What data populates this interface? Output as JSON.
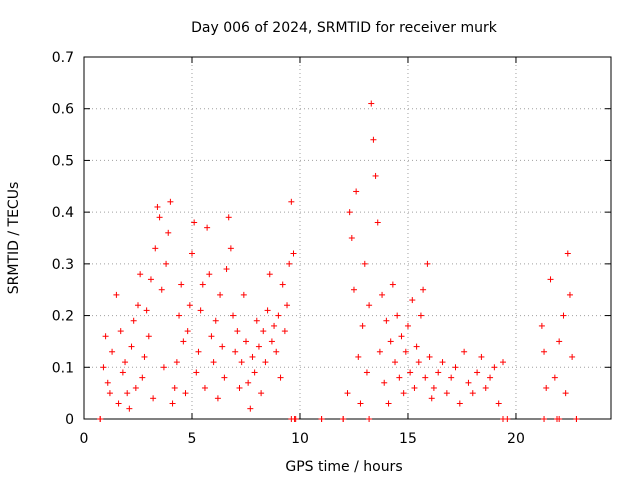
{
  "chart_data": {
    "type": "scatter",
    "title": "Day 006 of 2024, SRMTID for receiver murk",
    "xlabel": "GPS time / hours",
    "ylabel": "SRMTID / TECUs",
    "xlim": [
      0,
      24.4
    ],
    "ylim": [
      0,
      0.7
    ],
    "x_ticks": [
      0,
      5,
      10,
      15,
      20
    ],
    "x_tick_labels": [
      "0",
      "5",
      "10",
      "15",
      "20"
    ],
    "y_ticks": [
      0,
      0.1,
      0.2,
      0.3,
      0.4,
      0.5,
      0.6,
      0.7
    ],
    "y_tick_labels": [
      "0",
      "0.1",
      "0.2",
      "0.3",
      "0.4",
      "0.5",
      "0.6",
      "0.7"
    ],
    "grid": true,
    "marker": "+",
    "series": [
      {
        "name": "SRMTID",
        "color": "#ff0000",
        "x": [
          0.75,
          0.9,
          1.0,
          1.1,
          1.2,
          1.3,
          1.5,
          1.6,
          1.7,
          1.8,
          1.9,
          2.0,
          2.1,
          2.2,
          2.3,
          2.4,
          2.5,
          2.6,
          2.7,
          2.8,
          2.9,
          3.0,
          3.1,
          3.2,
          3.3,
          3.4,
          3.5,
          3.6,
          3.7,
          3.8,
          3.9,
          4.0,
          4.1,
          4.2,
          4.3,
          4.4,
          4.5,
          4.6,
          4.7,
          4.8,
          4.9,
          5.0,
          5.1,
          5.2,
          5.3,
          5.4,
          5.5,
          5.6,
          5.7,
          5.8,
          5.9,
          6.0,
          6.1,
          6.2,
          6.3,
          6.4,
          6.5,
          6.6,
          6.7,
          6.8,
          6.9,
          7.0,
          7.1,
          7.2,
          7.3,
          7.4,
          7.5,
          7.6,
          7.7,
          7.8,
          7.9,
          8.0,
          8.1,
          8.2,
          8.3,
          8.4,
          8.5,
          8.6,
          8.7,
          8.8,
          8.9,
          9.0,
          9.1,
          9.2,
          9.3,
          9.4,
          9.5,
          9.6,
          9.7,
          9.75,
          11.0,
          12.0,
          12.2,
          12.3,
          12.4,
          12.5,
          12.6,
          12.7,
          12.8,
          12.9,
          13.0,
          13.1,
          13.2,
          13.3,
          13.4,
          13.5,
          13.6,
          13.7,
          13.8,
          13.9,
          14.0,
          14.1,
          14.2,
          14.3,
          14.4,
          14.5,
          14.6,
          14.7,
          14.8,
          14.9,
          15.0,
          15.1,
          15.2,
          15.3,
          15.4,
          15.5,
          15.6,
          15.7,
          15.8,
          15.9,
          16.0,
          16.1,
          16.2,
          16.4,
          16.6,
          16.8,
          17.0,
          17.2,
          17.4,
          17.6,
          17.8,
          18.0,
          18.2,
          18.4,
          18.6,
          18.8,
          19.0,
          19.2,
          19.4,
          19.6,
          21.2,
          21.3,
          21.4,
          21.6,
          21.8,
          22.0,
          22.2,
          22.3,
          22.4,
          22.5,
          22.6,
          22.8
        ],
        "y": [
          0.0,
          0.1,
          0.16,
          0.07,
          0.05,
          0.13,
          0.24,
          0.03,
          0.17,
          0.09,
          0.11,
          0.05,
          0.02,
          0.14,
          0.19,
          0.06,
          0.22,
          0.28,
          0.08,
          0.12,
          0.21,
          0.16,
          0.27,
          0.04,
          0.33,
          0.41,
          0.39,
          0.25,
          0.1,
          0.3,
          0.36,
          0.42,
          0.03,
          0.06,
          0.11,
          0.2,
          0.26,
          0.15,
          0.05,
          0.17,
          0.22,
          0.32,
          0.38,
          0.09,
          0.13,
          0.21,
          0.26,
          0.06,
          0.37,
          0.28,
          0.16,
          0.11,
          0.19,
          0.04,
          0.24,
          0.14,
          0.08,
          0.29,
          0.39,
          0.33,
          0.2,
          0.13,
          0.17,
          0.06,
          0.11,
          0.24,
          0.15,
          0.07,
          0.02,
          0.12,
          0.09,
          0.19,
          0.14,
          0.05,
          0.17,
          0.11,
          0.21,
          0.28,
          0.15,
          0.18,
          0.13,
          0.2,
          0.08,
          0.26,
          0.17,
          0.22,
          0.3,
          0.42,
          0.32,
          0.0,
          0.0,
          0.0,
          0.05,
          0.4,
          0.35,
          0.25,
          0.44,
          0.12,
          0.03,
          0.18,
          0.3,
          0.09,
          0.22,
          0.61,
          0.54,
          0.47,
          0.38,
          0.13,
          0.24,
          0.07,
          0.19,
          0.03,
          0.15,
          0.26,
          0.11,
          0.2,
          0.08,
          0.16,
          0.05,
          0.13,
          0.18,
          0.09,
          0.23,
          0.06,
          0.14,
          0.11,
          0.2,
          0.25,
          0.08,
          0.3,
          0.12,
          0.04,
          0.06,
          0.09,
          0.11,
          0.05,
          0.08,
          0.1,
          0.03,
          0.13,
          0.07,
          0.05,
          0.09,
          0.12,
          0.06,
          0.08,
          0.1,
          0.03,
          0.11,
          0.0,
          0.18,
          0.13,
          0.06,
          0.27,
          0.08,
          0.15,
          0.2,
          0.05,
          0.32,
          0.24,
          0.12,
          0.0
        ]
      }
    ],
    "zero_markers_x": [
      0.75,
      9.6,
      9.8,
      11.0,
      12.0,
      13.2,
      19.4,
      21.3,
      21.9,
      22.0,
      22.8
    ]
  }
}
